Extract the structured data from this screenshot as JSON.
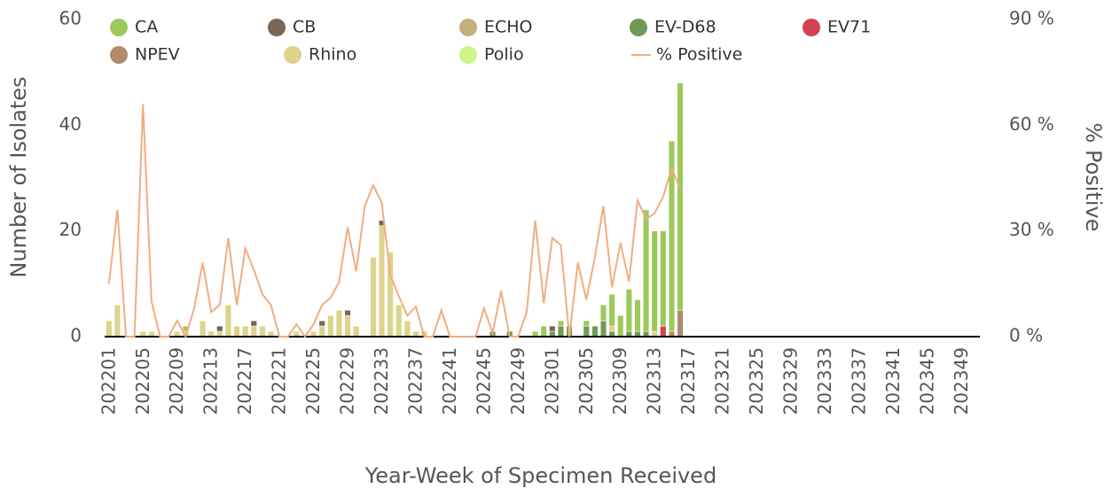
{
  "chart_data": {
    "type": "bar",
    "stacked": true,
    "xlabel": "Year-Week of Specimen Received",
    "ylabel": "Number of Isolates",
    "y2label": "% Positive",
    "categories": [
      "202201",
      null,
      null,
      null,
      "202205",
      null,
      null,
      null,
      "202209",
      null,
      null,
      null,
      "202213",
      null,
      null,
      null,
      "202217",
      null,
      null,
      null,
      "202221",
      null,
      null,
      null,
      "202225",
      null,
      null,
      null,
      "202229",
      null,
      null,
      null,
      "202233",
      null,
      null,
      null,
      "202237",
      null,
      null,
      null,
      "202241",
      null,
      null,
      null,
      "202245",
      null,
      null,
      null,
      "202249",
      null,
      null,
      null,
      "202301",
      null,
      null,
      null,
      "202305",
      null,
      null,
      null,
      "202309",
      null,
      null,
      null,
      "202313",
      null,
      null,
      null,
      "202317",
      null,
      null,
      null,
      "202321",
      null,
      null,
      null,
      "202325",
      null,
      null,
      null,
      "202329",
      null,
      null,
      null,
      "202333",
      null,
      null,
      null,
      "202337",
      null,
      null,
      null,
      "202341",
      null,
      null,
      null,
      "202345",
      null,
      null,
      null,
      "202349",
      null,
      null,
      null
    ],
    "ylim": [
      0,
      60
    ],
    "yticks": [
      0,
      20,
      40,
      60
    ],
    "y2lim": [
      0,
      90
    ],
    "y2ticks": [
      {
        "value": 0,
        "label": "0 %"
      },
      {
        "value": 30,
        "label": "30 %"
      },
      {
        "value": 60,
        "label": "60 %"
      },
      {
        "value": 90,
        "label": "90 %"
      }
    ],
    "grid": false,
    "series": [
      {
        "name": "CA",
        "color": "#9dc95a",
        "values": [
          0,
          0,
          0,
          0,
          0,
          0,
          0,
          0,
          0,
          1,
          0,
          0,
          0,
          0,
          0,
          0,
          0,
          0,
          0,
          0,
          0,
          0,
          0,
          0,
          0,
          0,
          0,
          0,
          0,
          0,
          0,
          0,
          0,
          0,
          0,
          0,
          0,
          0,
          0,
          0,
          0,
          0,
          0,
          0,
          0,
          0,
          0,
          0,
          0,
          0,
          1,
          2,
          0,
          1,
          0,
          0,
          1,
          0,
          3,
          6,
          4,
          8,
          6,
          23,
          19,
          18,
          36,
          43,
          null,
          null,
          null,
          null,
          null,
          null,
          null,
          null,
          null,
          null,
          null,
          null,
          null,
          null,
          null,
          null,
          null,
          null,
          null,
          null,
          null,
          null,
          null,
          null,
          null,
          null,
          null,
          null,
          null,
          null,
          null,
          null,
          null,
          null,
          null,
          null
        ]
      },
      {
        "name": "CB",
        "color": "#7a6655",
        "values": [
          0,
          0,
          0,
          0,
          0,
          0,
          0,
          0,
          0,
          0,
          0,
          0,
          0,
          1,
          0,
          0,
          0,
          1,
          0,
          0,
          0,
          0,
          0,
          0,
          0,
          1,
          0,
          0,
          1,
          0,
          0,
          0,
          1,
          0,
          0,
          0,
          0,
          0,
          0,
          0,
          0,
          0,
          0,
          0,
          0,
          0,
          0,
          0,
          0,
          0,
          0,
          0,
          1,
          0,
          0,
          0,
          0,
          0,
          0,
          0,
          0,
          0,
          0,
          0,
          0,
          0,
          0,
          0,
          null,
          null,
          null,
          null,
          null,
          null,
          null,
          null,
          null,
          null,
          null,
          null,
          null,
          null,
          null,
          null,
          null,
          null,
          null,
          null,
          null,
          null,
          null,
          null,
          null,
          null,
          null,
          null,
          null,
          null,
          null,
          null,
          null,
          null,
          null,
          null
        ]
      },
      {
        "name": "ECHO",
        "color": "#c4af78",
        "values": [
          0,
          0,
          0,
          0,
          0,
          0,
          0,
          0,
          0,
          0,
          0,
          0,
          0,
          0,
          0,
          0,
          0,
          0,
          0,
          0,
          0,
          0,
          0,
          0,
          0,
          0,
          0,
          0,
          0,
          0,
          0,
          0,
          0,
          0,
          0,
          0,
          0,
          0,
          0,
          0,
          0,
          0,
          0,
          0,
          0,
          0,
          0,
          0,
          0,
          0,
          0,
          0,
          0,
          0,
          0,
          0,
          0,
          0,
          0,
          0,
          0,
          0,
          0,
          0,
          0,
          0,
          0,
          0,
          null,
          null,
          null,
          null,
          null,
          null,
          null,
          null,
          null,
          null,
          null,
          null,
          null,
          null,
          null,
          null,
          null,
          null,
          null,
          null,
          null,
          null,
          null,
          null,
          null,
          null,
          null,
          null,
          null,
          null,
          null,
          null,
          null,
          null,
          null,
          null
        ]
      },
      {
        "name": "EV-D68",
        "color": "#6e9a55",
        "values": [
          0,
          0,
          0,
          0,
          0,
          0,
          0,
          0,
          0,
          0,
          0,
          0,
          0,
          0,
          0,
          0,
          0,
          0,
          0,
          0,
          0,
          0,
          0,
          0,
          0,
          0,
          0,
          0,
          0,
          0,
          0,
          0,
          0,
          0,
          0,
          0,
          0,
          0,
          0,
          0,
          0,
          0,
          0,
          0,
          0,
          1,
          0,
          1,
          0,
          0,
          0,
          0,
          1,
          2,
          2,
          0,
          2,
          2,
          3,
          1,
          0,
          1,
          1,
          1,
          0,
          0,
          0,
          0,
          null,
          null,
          null,
          null,
          null,
          null,
          null,
          null,
          null,
          null,
          null,
          null,
          null,
          null,
          null,
          null,
          null,
          null,
          null,
          null,
          null,
          null,
          null,
          null,
          null,
          null,
          null,
          null,
          null,
          null,
          null,
          null,
          null,
          null,
          null,
          null
        ]
      },
      {
        "name": "EV71",
        "color": "#d2424f",
        "values": [
          0,
          0,
          0,
          0,
          0,
          0,
          0,
          0,
          0,
          0,
          0,
          0,
          0,
          0,
          0,
          0,
          0,
          0,
          0,
          0,
          0,
          0,
          0,
          0,
          0,
          0,
          0,
          0,
          0,
          0,
          0,
          0,
          0,
          0,
          0,
          0,
          0,
          0,
          0,
          0,
          0,
          0,
          0,
          0,
          0,
          0,
          0,
          0,
          0,
          0,
          0,
          0,
          0,
          0,
          0,
          0,
          0,
          0,
          0,
          0,
          0,
          0,
          0,
          0,
          0,
          2,
          0,
          0,
          null,
          null,
          null,
          null,
          null,
          null,
          null,
          null,
          null,
          null,
          null,
          null,
          null,
          null,
          null,
          null,
          null,
          null,
          null,
          null,
          null,
          null,
          null,
          null,
          null,
          null,
          null,
          null,
          null,
          null,
          null,
          null,
          null,
          null,
          null,
          null
        ]
      },
      {
        "name": "NPEV",
        "color": "#b08b6a",
        "values": [
          0,
          0,
          0,
          0,
          0,
          0,
          0,
          0,
          0,
          0,
          0,
          0,
          0,
          0,
          0,
          0,
          0,
          0,
          0,
          0,
          0,
          0,
          0,
          0,
          0,
          0,
          0,
          0,
          0,
          0,
          0,
          0,
          0,
          0,
          0,
          0,
          0,
          0,
          0,
          0,
          0,
          0,
          0,
          0,
          0,
          0,
          0,
          0,
          0,
          0,
          0,
          0,
          0,
          0,
          0,
          0,
          0,
          0,
          0,
          0,
          0,
          0,
          0,
          0,
          0,
          0,
          1,
          5,
          null,
          null,
          null,
          null,
          null,
          null,
          null,
          null,
          null,
          null,
          null,
          null,
          null,
          null,
          null,
          null,
          null,
          null,
          null,
          null,
          null,
          null,
          null,
          null,
          null,
          null,
          null,
          null,
          null,
          null,
          null,
          null,
          null,
          null,
          null,
          null
        ]
      },
      {
        "name": "Rhino",
        "color": "#ddd38c",
        "values": [
          3,
          6,
          0,
          0,
          1,
          1,
          0,
          0,
          1,
          1,
          0,
          3,
          1,
          1,
          6,
          2,
          2,
          2,
          2,
          1,
          0,
          0,
          1,
          0,
          1,
          2,
          4,
          5,
          4,
          2,
          0,
          15,
          21,
          16,
          6,
          3,
          1,
          1,
          0,
          0,
          0,
          0,
          0,
          0,
          0,
          0,
          0,
          0,
          0,
          0,
          0,
          0,
          0,
          0,
          0,
          0,
          0,
          0,
          0,
          1,
          0,
          0,
          0,
          0,
          1,
          0,
          0,
          0,
          null,
          null,
          null,
          null,
          null,
          null,
          null,
          null,
          null,
          null,
          null,
          null,
          null,
          null,
          null,
          null,
          null,
          null,
          null,
          null,
          null,
          null,
          null,
          null,
          null,
          null,
          null,
          null,
          null,
          null,
          null,
          null,
          null,
          null,
          null,
          null
        ]
      },
      {
        "name": "Polio",
        "color": "#ccf58a",
        "values": [
          0,
          0,
          0,
          0,
          0,
          0,
          0,
          0,
          0,
          0,
          0,
          0,
          0,
          0,
          0,
          0,
          0,
          0,
          0,
          0,
          0,
          0,
          0,
          0,
          0,
          0,
          0,
          0,
          0,
          0,
          0,
          0,
          0,
          0,
          0,
          0,
          0,
          0,
          0,
          0,
          0,
          0,
          0,
          0,
          0,
          0,
          0,
          0,
          0,
          0,
          0,
          0,
          0,
          0,
          0,
          0,
          0,
          0,
          0,
          0,
          0,
          0,
          0,
          0,
          0,
          0,
          0,
          0,
          null,
          null,
          null,
          null,
          null,
          null,
          null,
          null,
          null,
          null,
          null,
          null,
          null,
          null,
          null,
          null,
          null,
          null,
          null,
          null,
          null,
          null,
          null,
          null,
          null,
          null,
          null,
          null,
          null,
          null,
          null,
          null,
          null,
          null,
          null,
          null
        ]
      },
      {
        "name": "% Positive",
        "color": "#f0ad80",
        "type": "line",
        "axis": "y2",
        "values": [
          15,
          36,
          0,
          0,
          66,
          10,
          0,
          0,
          4.5,
          0,
          8,
          21,
          7,
          9,
          28,
          9,
          25,
          19,
          12,
          9,
          0,
          0,
          3.5,
          0,
          3.5,
          9,
          11,
          15.5,
          31,
          18.5,
          37,
          43,
          38,
          17.5,
          11.5,
          6,
          8.5,
          0,
          0,
          7.5,
          0,
          0,
          0,
          0,
          8,
          1,
          13,
          0,
          0,
          7,
          33,
          9.5,
          28,
          26,
          0,
          21,
          10.5,
          22.6,
          37,
          14,
          26.6,
          15.6,
          38.7,
          33.4,
          35,
          39.7,
          47.8,
          42,
          null,
          null,
          null,
          null,
          null,
          null,
          null,
          null,
          null,
          null,
          null,
          null,
          null,
          null,
          null,
          null,
          null,
          null,
          null,
          null,
          null,
          null,
          null,
          null,
          null,
          null,
          null,
          null,
          null,
          null,
          null,
          null,
          null,
          null,
          null,
          null
        ]
      }
    ]
  }
}
